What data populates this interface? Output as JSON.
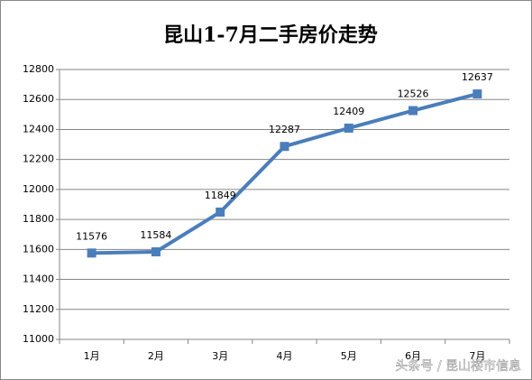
{
  "chart_data": {
    "type": "line",
    "title": "昆山1-7月二手房价走势",
    "categories": [
      "1月",
      "2月",
      "3月",
      "4月",
      "5月",
      "6月",
      "7月"
    ],
    "series": [
      {
        "name": "二手房价",
        "color": "#4a7ebb",
        "values": [
          11576,
          11584,
          11849,
          12287,
          12409,
          12526,
          12637
        ]
      }
    ],
    "ylim": [
      11000,
      12800
    ],
    "yticks": [
      11000,
      11200,
      11400,
      11600,
      11800,
      12000,
      12200,
      12400,
      12600,
      12800
    ],
    "grid": true,
    "data_labels": true,
    "legend": false
  },
  "watermark": "头条号 / 昆山楼市信息"
}
